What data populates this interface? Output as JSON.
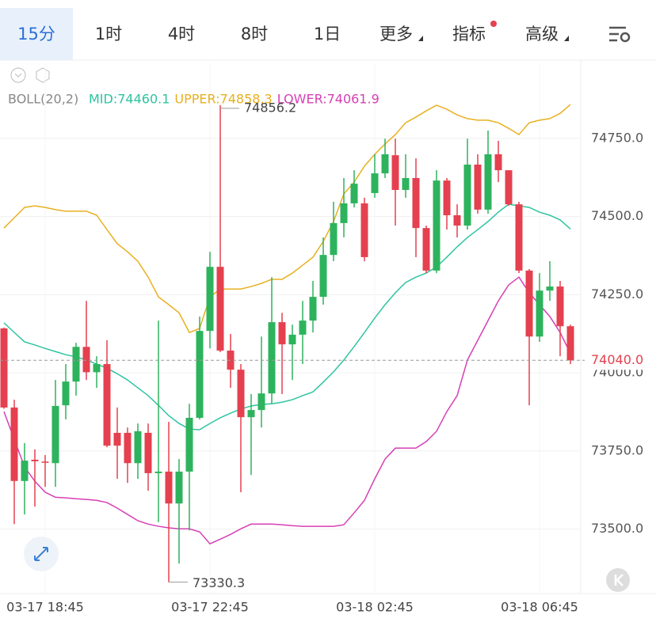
{
  "tabs": [
    "15分",
    "1时",
    "4时",
    "8时",
    "1日",
    "更多",
    "指标",
    "高级"
  ],
  "active_tab": 0,
  "chart_data": {
    "type": "candlestick",
    "indicator": "BOLL(20,2)",
    "categories": [
      null,
      null,
      null,
      null,
      "03-17 18:45",
      null,
      null,
      null,
      null,
      null,
      null,
      null,
      null,
      null,
      null,
      null,
      null,
      null,
      null,
      null,
      "03-17 22:45",
      null,
      null,
      null,
      null,
      null,
      null,
      null,
      null,
      null,
      null,
      null,
      null,
      null,
      null,
      null,
      "03-18 02:45",
      null,
      null,
      null,
      null,
      null,
      null,
      null,
      null,
      null,
      null,
      null,
      null,
      null,
      null,
      null,
      "03-18 06:45",
      null,
      null,
      null
    ],
    "open": [
      74142,
      73889,
      73654,
      73722,
      73716,
      73711,
      73896,
      73972,
      74083,
      74002,
      74028,
      73808,
      73808,
      73711,
      73808,
      73679,
      73684,
      73582,
      73684,
      73856,
      74134,
      74339,
      74071,
      74010,
      73858,
      73881,
      73934,
      74162,
      74091,
      74122,
      74167,
      74243,
      74377,
      74479,
      74542,
      74542,
      74575,
      74638,
      74696,
      74585,
      74623,
      74463,
      74327,
      74615,
      74504,
      74471,
      74666,
      74522,
      74699,
      74648,
      74539,
      74327,
      74116,
      74263,
      74276,
      74149
    ],
    "high": [
      74145,
      73914,
      73775,
      73755,
      73737,
      73977,
      74028,
      74096,
      74230,
      74053,
      74104,
      73889,
      73825,
      73838,
      73838,
      74167,
      73843,
      73724,
      73901,
      74180,
      74387,
      74856.2,
      74124,
      74028,
      73932,
      74116,
      74306,
      74192,
      74154,
      74230,
      74294,
      74433,
      74547,
      74623,
      74648,
      74560,
      74699,
      74749,
      74749,
      74699,
      74686,
      74471,
      74648,
      74623,
      74539,
      74749,
      74699,
      74775,
      74742,
      74648,
      74547,
      74332,
      74319,
      74357,
      74294,
      74154
    ],
    "low": [
      73885,
      73516,
      73547,
      73572,
      73635,
      73635,
      73851,
      73927,
      73977,
      73952,
      73762,
      73661,
      73648,
      73661,
      73623,
      73522,
      73330.3,
      73390,
      73496,
      73851,
      74078,
      74066,
      73952,
      73618,
      73673,
      73825,
      73901,
      73932,
      73977,
      74028,
      74129,
      74218,
      74357,
      74433,
      74529,
      74357,
      74560,
      74623,
      74471,
      74560,
      74370,
      74319,
      74319,
      74458,
      74433,
      74458,
      74509,
      74509,
      74610,
      74534,
      74319,
      73896,
      74099,
      74230,
      74053,
      74028
    ],
    "close": [
      73889,
      73654,
      73719,
      73717,
      73714,
      73894,
      73972,
      74083,
      74002,
      74028,
      73767,
      73767,
      73711,
      73813,
      73679,
      73684,
      73582,
      73684,
      73856,
      74134,
      74339,
      74071,
      74010,
      73858,
      73881,
      73934,
      74162,
      74091,
      74122,
      74167,
      74243,
      74377,
      74479,
      74542,
      74605,
      74370,
      74638,
      74699,
      74585,
      74623,
      74463,
      74327,
      74615,
      74504,
      74471,
      74666,
      74522,
      74699,
      74648,
      74539,
      74327,
      74116,
      74263,
      74276,
      74149,
      74040
    ],
    "up_color": "#2db35d",
    "down_color": "#e5404f",
    "series": [
      {
        "name": "MID:74460.1",
        "color": "#2ec4a0",
        "values": [
          74160,
          74129,
          74099,
          74089,
          74078,
          74068,
          74058,
          74051,
          74041,
          74028,
          74015,
          73997,
          73977,
          73952,
          73927,
          73896,
          73863,
          73838,
          73820,
          73818,
          73838,
          73856,
          73871,
          73884,
          73894,
          73899,
          73901,
          73906,
          73914,
          73927,
          73939,
          73970,
          74003,
          74041,
          74084,
          74129,
          74175,
          74218,
          74256,
          74289,
          74306,
          74319,
          74339,
          74370,
          74403,
          74433,
          74458,
          74484,
          74514,
          74539,
          74534,
          74529,
          74514,
          74504,
          74489,
          74460.1
        ]
      },
      {
        "name": "UPPER:74858.3",
        "color": "#e8b020",
        "values": [
          74463,
          74496,
          74529,
          74534,
          74529,
          74522,
          74517,
          74517,
          74517,
          74504,
          74458,
          74413,
          74387,
          74357,
          74306,
          74243,
          74218,
          74192,
          74129,
          74142,
          74243,
          74268,
          74268,
          74268,
          74276,
          74286,
          74299,
          74299,
          74319,
          74344,
          74370,
          74420,
          74484,
          74572,
          74610,
          74661,
          74699,
          74732,
          74762,
          74800,
          74818,
          74838,
          74856,
          74843,
          74825,
          74813,
          74808,
          74808,
          74800,
          74782,
          74762,
          74800,
          74808,
          74813,
          74830,
          74858.3
        ]
      },
      {
        "name": "LOWER:74061.9",
        "color": "#d63fb5",
        "values": [
          73876,
          73787,
          73699,
          73653,
          73618,
          73602,
          73600,
          73597,
          73595,
          73592,
          73585,
          73567,
          73547,
          73527,
          73516,
          73509,
          73504,
          73501,
          73501,
          73491,
          73453,
          73468,
          73483,
          73501,
          73516,
          73516,
          73516,
          73514,
          73511,
          73509,
          73509,
          73509,
          73509,
          73514,
          73552,
          73592,
          73661,
          73724,
          73759,
          73759,
          73759,
          73780,
          73813,
          73876,
          73927,
          74041,
          74104,
          74167,
          74230,
          74281,
          74306,
          74256,
          74218,
          74180,
          74129,
          74061.9
        ]
      }
    ],
    "ylim": [
      73294,
      74990
    ],
    "yticks": [
      {
        "value": 73500,
        "label": "73500.0"
      },
      {
        "value": 73750,
        "label": "73750.0"
      },
      {
        "value": 74000,
        "label": "74000.0"
      },
      {
        "value": 74250,
        "label": "74250.0"
      },
      {
        "value": 74500,
        "label": "74500.0"
      },
      {
        "value": 74750,
        "label": "74750.0"
      }
    ],
    "grid": true,
    "price_line": {
      "value": 74040,
      "label": "74040.0"
    }
  }
}
